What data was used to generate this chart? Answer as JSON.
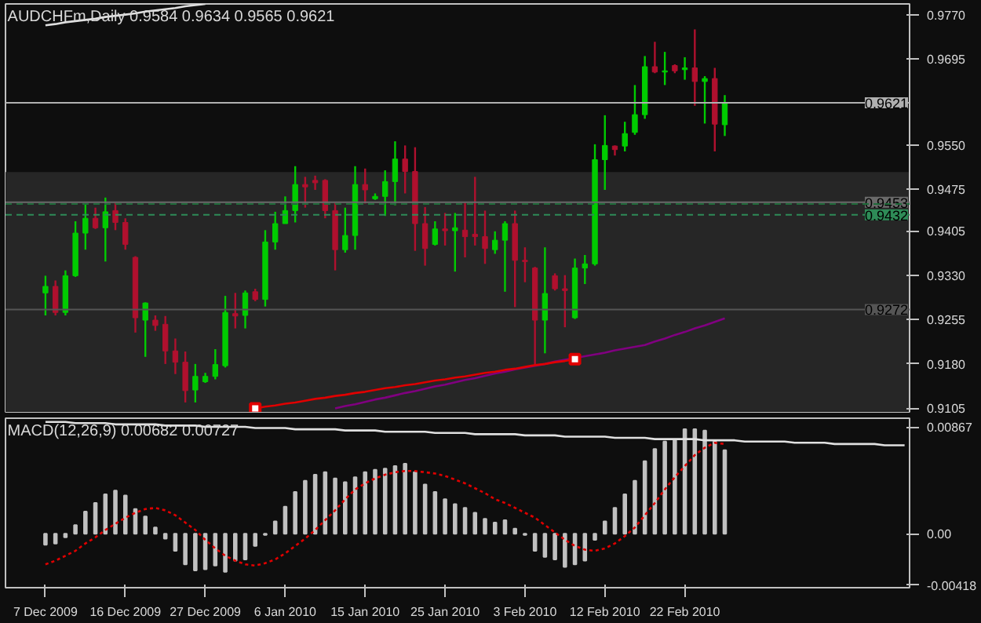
{
  "chart_data": [
    {
      "type": "candlestick",
      "title": "AUDCHFm,Daily 0.9584 0.9634 0.9565 0.9621",
      "categories": [
        null,
        null,
        null,
        null,
        null,
        null,
        null,
        null,
        null,
        null,
        null,
        null,
        null,
        null,
        null,
        null,
        null,
        null,
        null,
        null,
        null,
        null,
        null,
        null,
        null,
        null,
        null,
        null,
        null,
        null,
        null,
        null,
        null,
        null,
        null,
        null,
        null,
        null,
        null,
        null,
        null,
        null,
        null,
        null,
        null,
        null,
        null,
        null,
        null,
        null,
        null,
        null,
        null,
        null,
        null,
        null,
        null,
        null,
        null,
        null,
        null,
        null,
        null,
        null,
        null,
        null,
        null,
        null,
        null,
        null,
        null,
        null,
        null,
        null,
        null,
        null,
        null,
        null,
        null,
        null,
        null,
        null,
        null,
        null,
        null,
        null,
        null
      ],
      "ohlc": [
        [
          0.93,
          0.9329,
          0.9262,
          0.9311
        ],
        [
          0.9311,
          0.9321,
          0.9262,
          0.9267
        ],
        [
          0.9267,
          0.9338,
          0.9262,
          0.9329
        ],
        [
          0.9329,
          0.9421,
          0.9327,
          0.9401
        ],
        [
          0.9401,
          0.945,
          0.9373,
          0.9426
        ],
        [
          0.9426,
          0.9444,
          0.9408,
          0.941
        ],
        [
          0.941,
          0.9461,
          0.9353,
          0.9437
        ],
        [
          0.9439,
          0.9452,
          0.9406,
          0.9419
        ],
        [
          0.9419,
          0.9426,
          0.9373,
          0.9382
        ],
        [
          0.936,
          0.9362,
          0.9233,
          0.9258
        ],
        [
          0.9254,
          0.9284,
          0.9192,
          0.9283
        ],
        [
          0.9254,
          0.9262,
          0.9236,
          0.9245
        ],
        [
          0.9247,
          0.9261,
          0.918,
          0.9202
        ],
        [
          0.9202,
          0.9223,
          0.9163,
          0.9183
        ],
        [
          0.9183,
          0.9201,
          0.9115,
          0.9135
        ],
        [
          0.9136,
          0.918,
          0.9115,
          0.9159
        ],
        [
          0.915,
          0.9165,
          0.9148,
          0.9159
        ],
        [
          0.9159,
          0.9205,
          0.9154,
          0.9179
        ],
        [
          0.9177,
          0.9295,
          0.9174,
          0.9267
        ],
        [
          0.9265,
          0.93,
          0.924,
          0.9261
        ],
        [
          0.9262,
          0.9304,
          0.924,
          0.93
        ],
        [
          0.9302,
          0.9307,
          0.9286,
          0.9289
        ],
        [
          0.9289,
          0.9406,
          0.9277,
          0.9386
        ],
        [
          0.9386,
          0.9437,
          0.9373,
          0.9417
        ],
        [
          0.9417,
          0.9463,
          0.9417,
          0.9439
        ],
        [
          0.9439,
          0.9514,
          0.9419,
          0.9483
        ],
        [
          0.9483,
          0.9496,
          0.9444,
          0.9479
        ],
        [
          0.949,
          0.9498,
          0.9474,
          0.9486
        ],
        [
          0.949,
          0.9492,
          0.9426,
          0.9439
        ],
        [
          0.9439,
          0.9452,
          0.9338,
          0.9373
        ],
        [
          0.9373,
          0.9444,
          0.9368,
          0.9397
        ],
        [
          0.9397,
          0.9514,
          0.9373,
          0.9483
        ],
        [
          0.9483,
          0.951,
          0.9451,
          0.9474
        ],
        [
          0.9459,
          0.9468,
          0.9457,
          0.9463
        ],
        [
          0.9463,
          0.9507,
          0.943,
          0.9488
        ],
        [
          0.9488,
          0.9556,
          0.9448,
          0.9526
        ],
        [
          0.9526,
          0.9549,
          0.9468,
          0.9505
        ],
        [
          0.9505,
          0.9546,
          0.9371,
          0.9417
        ],
        [
          0.9417,
          0.9445,
          0.9346,
          0.9375
        ],
        [
          0.9382,
          0.9421,
          0.938,
          0.9408
        ],
        [
          0.9408,
          0.9435,
          0.938,
          0.9405
        ],
        [
          0.9405,
          0.9435,
          0.9336,
          0.941
        ],
        [
          0.9406,
          0.9452,
          0.936,
          0.9395
        ],
        [
          0.9399,
          0.9496,
          0.938,
          0.9395
        ],
        [
          0.9395,
          0.9439,
          0.9349,
          0.9375
        ],
        [
          0.9373,
          0.9404,
          0.9366,
          0.9389
        ],
        [
          0.9389,
          0.9421,
          0.9302,
          0.9417
        ],
        [
          0.9417,
          0.9439,
          0.9276,
          0.9355
        ],
        [
          0.9355,
          0.9377,
          0.9318,
          0.9353
        ],
        [
          0.9342,
          0.9344,
          0.9177,
          0.9254
        ],
        [
          0.9254,
          0.9377,
          0.9198,
          0.9299
        ],
        [
          0.9329,
          0.9333,
          0.9304,
          0.9307
        ],
        [
          0.9307,
          0.933,
          0.9242,
          0.9304
        ],
        [
          0.9258,
          0.9358,
          0.9256,
          0.9342
        ],
        [
          0.9342,
          0.9364,
          0.9315,
          0.9349
        ],
        [
          0.9349,
          0.9551,
          0.9346,
          0.9525
        ],
        [
          0.9525,
          0.96,
          0.9474,
          0.9549
        ],
        [
          0.9548,
          0.9549,
          0.9532,
          0.9542
        ],
        [
          0.9548,
          0.9589,
          0.9539,
          0.9569
        ],
        [
          0.9571,
          0.9651,
          0.9567,
          0.9601
        ],
        [
          0.9601,
          0.97,
          0.9594,
          0.9682
        ],
        [
          0.9682,
          0.9724,
          0.9671,
          0.9673
        ],
        [
          0.9673,
          0.9707,
          0.9651,
          0.9675
        ],
        [
          0.9684,
          0.9686,
          0.9671,
          0.9675
        ],
        [
          0.9677,
          0.9698,
          0.966,
          0.968
        ],
        [
          0.968,
          0.9745,
          0.9616,
          0.9657
        ],
        [
          0.9657,
          0.9666,
          0.9586,
          0.9662
        ],
        [
          0.9662,
          0.968,
          0.9539,
          0.9585
        ],
        [
          0.9584,
          0.9634,
          0.9565,
          0.9621
        ],
        null,
        null,
        null,
        null,
        null,
        null,
        null,
        null,
        null,
        null,
        null,
        null,
        null,
        null,
        null,
        null,
        null,
        null
      ],
      "colors": [
        "#00cc00",
        "#b0102e",
        "#00cc00",
        "#00cc00",
        "#00cc00",
        "#b0102e",
        "#00cc00",
        "#b0102e",
        "#b0102e",
        "#b0102e",
        "#00cc00",
        "#b0102e",
        "#b0102e",
        "#b0102e",
        "#b0102e",
        "#00cc00",
        "#00cc00",
        "#00cc00",
        "#00cc00",
        "#b0102e",
        "#00cc00",
        "#b0102e",
        "#00cc00",
        "#00cc00",
        "#00cc00",
        "#00cc00",
        "#b0102e",
        "#b0102e",
        "#b0102e",
        "#b0102e",
        "#00cc00",
        "#00cc00",
        "#b0102e",
        "#00cc00",
        "#00cc00",
        "#00cc00",
        "#b0102e",
        "#b0102e",
        "#b0102e",
        "#00cc00",
        "#b0102e",
        "#00cc00",
        "#b0102e",
        "#b0102e",
        "#b0102e",
        "#00cc00",
        "#00cc00",
        "#b0102e",
        "#b0102e",
        "#b0102e",
        "#00cc00",
        "#b0102e",
        "#b0102e",
        "#00cc00",
        "#00cc00",
        "#00cc00",
        "#00cc00",
        "#b0102e",
        "#00cc00",
        "#00cc00",
        "#00cc00",
        "#b0102e",
        "#00cc00",
        "#b0102e",
        "#00cc00",
        "#b0102e",
        "#00cc00",
        "#b0102e",
        "#00cc00",
        null,
        null,
        null,
        null,
        null,
        null,
        null,
        null,
        null,
        null,
        null,
        null,
        null,
        null,
        null,
        null,
        null,
        null
      ],
      "series": [
        {
          "type": "line",
          "color": "#e0e0e0",
          "values": [
            0.9752,
            0.9754,
            0.9757,
            0.9759,
            0.9761,
            0.9763,
            0.9766,
            0.9768,
            0.977,
            0.9772,
            0.9775,
            0.9777,
            0.9779,
            0.9781,
            0.9784,
            0.9786,
            0.9788,
            null,
            null,
            null,
            null,
            null,
            null,
            null,
            null,
            null,
            null,
            null,
            null,
            null,
            null,
            null,
            null,
            null,
            null,
            null,
            null,
            null,
            null,
            null,
            null,
            null,
            null,
            null,
            null,
            null,
            null,
            null,
            null,
            null,
            null,
            null,
            null,
            null,
            null,
            null,
            null,
            null,
            null,
            null,
            null,
            null,
            null,
            null,
            null,
            null,
            null,
            null,
            null,
            null,
            null,
            null,
            null,
            null,
            null,
            null,
            null,
            null,
            null,
            null,
            null,
            null,
            null,
            null,
            null,
            null,
            null
          ]
        },
        {
          "type": "line",
          "color": "#800080",
          "values": [
            null,
            null,
            null,
            null,
            null,
            null,
            null,
            null,
            null,
            null,
            null,
            null,
            null,
            null,
            null,
            null,
            null,
            null,
            null,
            null,
            null,
            null,
            null,
            null,
            null,
            null,
            null,
            null,
            null,
            0.9105,
            0.9109,
            0.9112,
            0.9116,
            0.912,
            0.9123,
            0.9127,
            0.9131,
            0.9134,
            0.9138,
            0.9142,
            0.9145,
            0.9149,
            0.9153,
            0.9156,
            0.916,
            0.9164,
            0.9167,
            0.9171,
            0.9174,
            0.9177,
            0.918,
            0.9184,
            0.9187,
            0.919,
            0.9193,
            0.9196,
            0.9199,
            0.9203,
            0.9206,
            0.9209,
            0.9212,
            0.9218,
            0.9223,
            0.9229,
            0.9234,
            0.924,
            0.9245,
            0.9251,
            0.9257,
            null,
            null,
            null,
            null,
            null,
            null,
            null,
            null,
            null,
            null,
            null,
            null,
            null,
            null,
            null,
            null,
            null,
            null
          ]
        },
        {
          "type": "line",
          "color": "#e00000",
          "values": [
            null,
            null,
            null,
            null,
            null,
            null,
            null,
            null,
            null,
            null,
            null,
            null,
            null,
            null,
            null,
            null,
            null,
            null,
            null,
            null,
            null,
            0.9105,
            0.9108,
            0.911,
            0.9113,
            0.9115,
            0.9118,
            0.9121,
            0.9123,
            0.9126,
            0.9128,
            0.9131,
            0.9133,
            0.9136,
            0.9139,
            0.9141,
            0.9144,
            0.9146,
            0.9149,
            0.9152,
            0.9154,
            0.9157,
            0.9159,
            0.9162,
            0.9165,
            0.9167,
            0.917,
            0.9172,
            0.9175,
            0.9178,
            0.918,
            0.9183,
            0.9185,
            0.9188,
            null,
            null,
            null,
            null,
            null,
            null,
            null,
            null,
            null,
            null,
            null,
            null,
            null,
            null,
            null,
            null,
            null,
            null,
            null,
            null,
            null,
            null,
            null,
            null,
            null,
            null,
            null,
            null,
            null,
            null,
            null,
            null,
            null
          ]
        },
        {
          "type": "scatter",
          "marker": "square",
          "color": "#e00000",
          "values": [
            null,
            null,
            null,
            null,
            null,
            null,
            null,
            null,
            null,
            null,
            null,
            null,
            null,
            null,
            null,
            null,
            null,
            null,
            null,
            null,
            null,
            0.9105,
            null,
            null,
            null,
            null,
            null,
            null,
            null,
            null,
            null,
            null,
            null,
            null,
            null,
            null,
            null,
            null,
            null,
            null,
            null,
            null,
            null,
            null,
            null,
            null,
            null,
            null,
            null,
            null,
            null,
            null,
            null,
            0.9188,
            null,
            null,
            null,
            null,
            null,
            null,
            null,
            null,
            null,
            null,
            null,
            null,
            null,
            null,
            null,
            null,
            null,
            null,
            null,
            null,
            null,
            null,
            null,
            null,
            null,
            null,
            null,
            null,
            null,
            null,
            null,
            null,
            null
          ]
        }
      ],
      "ylim": [
        0.9099,
        0.9788
      ],
      "yticks": [
        0.9105,
        {
          "value": 0.918,
          "label": "0.9180"
        },
        0.9255,
        {
          "value": 0.933,
          "label": "0.9330"
        },
        0.9405,
        0.9475,
        {
          "value": 0.955,
          "label": "0.9550"
        },
        0.9695,
        {
          "value": 0.977,
          "label": "0.9770"
        }
      ],
      "bands": [
        {
          "axis": "y",
          "from": 0.9099,
          "to": 0.9504,
          "color": "#262626"
        }
      ],
      "ref_lines": [
        {
          "axis": "y",
          "value": 0.9621,
          "label": "0.9621",
          "color": "#b0b0b0",
          "line_style": "solid"
        },
        {
          "axis": "y",
          "value": 0.9453,
          "label": "0.9453",
          "color": "#6a6a6a",
          "line_style": "solid"
        },
        {
          "axis": "y",
          "value": 0.945,
          "color": "#1f6b3a",
          "line_style": "dashed"
        },
        {
          "axis": "y",
          "value": 0.9432,
          "label": "0.9432",
          "color": "#2e8b57",
          "line_style": "dashed"
        },
        {
          "axis": "y",
          "value": 0.9272,
          "label": "0.9272",
          "color": "#555555",
          "line_style": "solid"
        }
      ],
      "tick_labels": "y"
    },
    {
      "type": "bar",
      "title": "MACD(12,26,9) 0.00682 0.00727",
      "categories": [
        "7 Dec 2009",
        null,
        null,
        null,
        null,
        null,
        null,
        null,
        "16 Dec 2009",
        null,
        null,
        null,
        null,
        null,
        null,
        null,
        "27 Dec 2009",
        null,
        null,
        null,
        null,
        null,
        null,
        null,
        "6 Jan 2010",
        null,
        null,
        null,
        null,
        null,
        null,
        null,
        "15 Jan 2010",
        null,
        null,
        null,
        null,
        null,
        null,
        null,
        "25 Jan 2010",
        null,
        null,
        null,
        null,
        null,
        null,
        null,
        "3 Feb 2010",
        null,
        null,
        null,
        null,
        null,
        null,
        null,
        "12 Feb 2010",
        null,
        null,
        null,
        null,
        null,
        null,
        null,
        "22 Feb 2010",
        null,
        null,
        null,
        null,
        null,
        null,
        null,
        null,
        null,
        null,
        null,
        null,
        null,
        null,
        null,
        null,
        null,
        null,
        null,
        null,
        null,
        null
      ],
      "series": [
        {
          "type": "bar",
          "color": "#c0c0c0",
          "values": [
            -0.0009,
            -0.0008,
            -0.0003,
            0.0007,
            0.0018,
            0.0025,
            0.0032,
            0.0035,
            0.0031,
            0.002,
            0.0014,
            0.0005,
            -0.0004,
            -0.0014,
            -0.0025,
            -0.003,
            -0.0029,
            -0.0026,
            -0.0031,
            -0.0022,
            -0.0021,
            -0.001,
            -0.0001,
            0.001,
            0.0022,
            0.0034,
            0.0043,
            0.0048,
            0.005,
            0.0045,
            0.0042,
            0.0046,
            0.005,
            0.0052,
            0.0053,
            0.0055,
            0.0057,
            0.005,
            0.004,
            0.0034,
            0.0028,
            0.0024,
            0.0021,
            0.0017,
            0.0012,
            0.0009,
            0.0011,
            0.0004,
            -0.0001,
            -0.0014,
            -0.0019,
            -0.0021,
            -0.0027,
            -0.0025,
            -0.0022,
            -0.0005,
            0.001,
            0.0021,
            0.0032,
            0.0043,
            0.0059,
            0.0069,
            0.0075,
            0.0076,
            0.0085,
            0.0085,
            0.0084,
            0.0075,
            0.0068,
            null,
            null,
            null,
            null,
            null,
            null,
            null,
            null,
            null,
            null,
            null,
            null,
            null,
            null,
            null,
            null,
            null,
            null
          ]
        },
        {
          "type": "line",
          "color": "#e00000",
          "line_style": "dotted",
          "values": [
            -0.0025,
            -0.0022,
            -0.0018,
            -0.0014,
            -0.0008,
            -0.0003,
            0.0003,
            0.0008,
            0.0013,
            0.0017,
            0.002,
            0.0021,
            0.0019,
            0.0015,
            0.0009,
            0.0003,
            -0.0005,
            -0.0012,
            -0.0018,
            -0.0022,
            -0.0025,
            -0.0026,
            -0.0024,
            -0.0021,
            -0.0016,
            -0.001,
            -0.0004,
            0.0003,
            0.0011,
            0.0019,
            0.0028,
            0.0036,
            0.0041,
            0.0045,
            0.0048,
            0.005,
            0.0051,
            0.0051,
            0.005,
            0.0049,
            0.0047,
            0.0044,
            0.0041,
            0.0037,
            0.0033,
            0.0028,
            0.0025,
            0.0021,
            0.0017,
            0.0013,
            0.0007,
            0.0001,
            -0.0005,
            -0.001,
            -0.0013,
            -0.0014,
            -0.0012,
            -0.0008,
            -0.0002,
            0.0005,
            0.0015,
            0.0025,
            0.0036,
            0.0046,
            0.0055,
            0.0064,
            0.007,
            0.0074,
            0.0073,
            null,
            null,
            null,
            null,
            null,
            null,
            null,
            null,
            null,
            null,
            null,
            null,
            null,
            null,
            null,
            null,
            null,
            null
          ]
        },
        {
          "type": "line",
          "color": "#e0e0e0",
          "values": [
            0.0091,
            0.0091,
            0.0091,
            0.009,
            0.009,
            0.009,
            0.009,
            0.0089,
            0.0089,
            0.0089,
            0.0089,
            0.0089,
            0.0088,
            0.0088,
            0.0088,
            0.0088,
            0.0087,
            0.0087,
            0.0087,
            0.0087,
            0.0087,
            0.0086,
            0.0086,
            0.0086,
            0.0086,
            0.0085,
            0.0085,
            0.0085,
            0.0085,
            0.0085,
            0.0084,
            0.0084,
            0.0084,
            0.0084,
            0.0083,
            0.0083,
            0.0083,
            0.0083,
            0.0083,
            0.0082,
            0.0082,
            0.0082,
            0.0082,
            0.0081,
            0.0081,
            0.0081,
            0.0081,
            0.0081,
            0.008,
            0.008,
            0.008,
            0.008,
            0.0079,
            0.0079,
            0.0079,
            0.0079,
            0.0079,
            0.0078,
            0.0078,
            0.0078,
            0.0078,
            0.0077,
            0.0077,
            0.0077,
            0.0077,
            0.0077,
            0.0076,
            0.0076,
            0.0076,
            0.0076,
            0.0075,
            0.0075,
            0.0075,
            0.0075,
            0.0075,
            0.0074,
            0.0074,
            0.0074,
            0.0074,
            0.0073,
            0.0073,
            0.0073,
            0.0073,
            0.0073,
            0.0072,
            0.0072,
            0.0072
          ]
        }
      ],
      "ylim": [
        -0.0044,
        0.0094
      ],
      "yticks": [
        -0.00418,
        {
          "value": 0,
          "label": "0.00"
        },
        0.00867
      ]
    }
  ]
}
